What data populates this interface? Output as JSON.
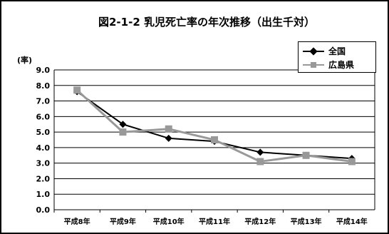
{
  "chart_data": {
    "type": "line",
    "title": "図2-1-2 乳児死亡率の年次推移（出生千対）",
    "ylabel": "(率)",
    "ylim": [
      0,
      9
    ],
    "yticks": [
      "0.0",
      "1.0",
      "2.0",
      "3.0",
      "4.0",
      "5.0",
      "6.0",
      "7.0",
      "8.0",
      "9.0"
    ],
    "grid": true,
    "legend_position": "top-right",
    "categories": [
      "平成8年",
      "平成9年",
      "平成10年",
      "平成11年",
      "平成12年",
      "平成13年",
      "平成14年"
    ],
    "series": [
      {
        "name": "全国",
        "color": "#000000",
        "marker": "diamond",
        "values": [
          7.6,
          5.5,
          4.6,
          4.4,
          3.7,
          3.5,
          3.3
        ]
      },
      {
        "name": "広島県",
        "color": "#999999",
        "marker": "square",
        "values": [
          7.7,
          5.0,
          5.2,
          4.5,
          3.1,
          3.5,
          3.1
        ]
      }
    ]
  }
}
